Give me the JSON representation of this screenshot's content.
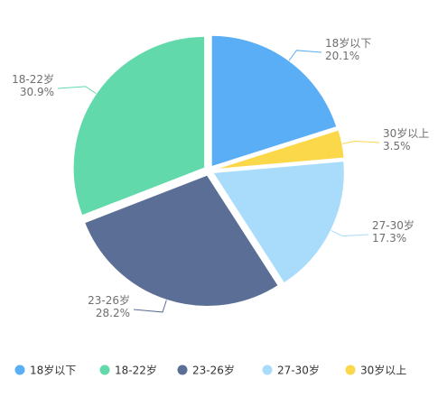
{
  "chart_data": {
    "type": "pie",
    "title": "",
    "legend_position": "bottom",
    "slices": [
      {
        "name": "18岁以下",
        "value": 20.1,
        "label": "20.1%",
        "color": "#5aaef5"
      },
      {
        "name": "30岁以上",
        "value": 3.5,
        "label": "3.5%",
        "color": "#fbd84a"
      },
      {
        "name": "27-30岁",
        "value": 17.3,
        "label": "17.3%",
        "color": "#a8dcfa"
      },
      {
        "name": "23-26岁",
        "value": 28.2,
        "label": "28.2%",
        "color": "#5b6e96"
      },
      {
        "name": "18-22岁",
        "value": 30.9,
        "label": "30.9%",
        "color": "#62d9aa"
      }
    ],
    "legend": [
      "18岁以下",
      "18-22岁",
      "23-26岁",
      "27-30岁",
      "30岁以上"
    ]
  }
}
